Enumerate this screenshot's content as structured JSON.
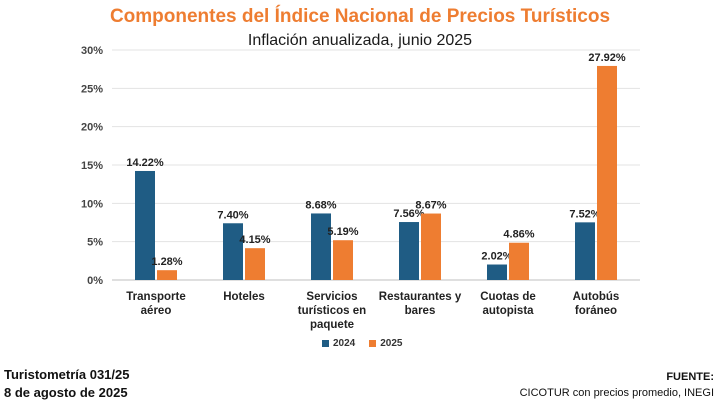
{
  "chart_data": {
    "type": "bar",
    "title": "Componentes del Índice Nacional de Precios Turísticos",
    "subtitle": "Inflación anualizada, junio 2025",
    "categories": [
      [
        "Transporte",
        "aéreo"
      ],
      [
        "Hoteles"
      ],
      [
        "Servicios",
        "turísticos en",
        "paquete"
      ],
      [
        "Restaurantes y",
        "bares"
      ],
      [
        "Cuotas de",
        "autopista"
      ],
      [
        "Autobús",
        "foráneo"
      ]
    ],
    "series": [
      {
        "name": "2024",
        "color": "#1f5c84",
        "values": [
          14.22,
          7.4,
          8.68,
          7.56,
          2.02,
          7.52
        ]
      },
      {
        "name": "2025",
        "color": "#ee7d31",
        "values": [
          1.28,
          4.15,
          5.19,
          8.67,
          4.86,
          27.92
        ]
      }
    ],
    "value_labels": [
      [
        "14.22%",
        "7.40%",
        "8.68%",
        "7.56%",
        "2.02%",
        "7.52%"
      ],
      [
        "1.28%",
        "4.15%",
        "5.19%",
        "8.67%",
        "4.86%",
        "27.92%"
      ]
    ],
    "yticks": [
      "0%",
      "5%",
      "10%",
      "15%",
      "20%",
      "25%",
      "30%"
    ],
    "ylim": [
      0,
      30
    ],
    "grid": true,
    "legend": "bottom-center"
  },
  "footer": {
    "left_line1": "Turistometría 031/25",
    "left_line2": "8 de agosto de 2025",
    "source_label": "FUENTE:",
    "source_text": "CICOTUR con precios promedio, INEGI"
  }
}
